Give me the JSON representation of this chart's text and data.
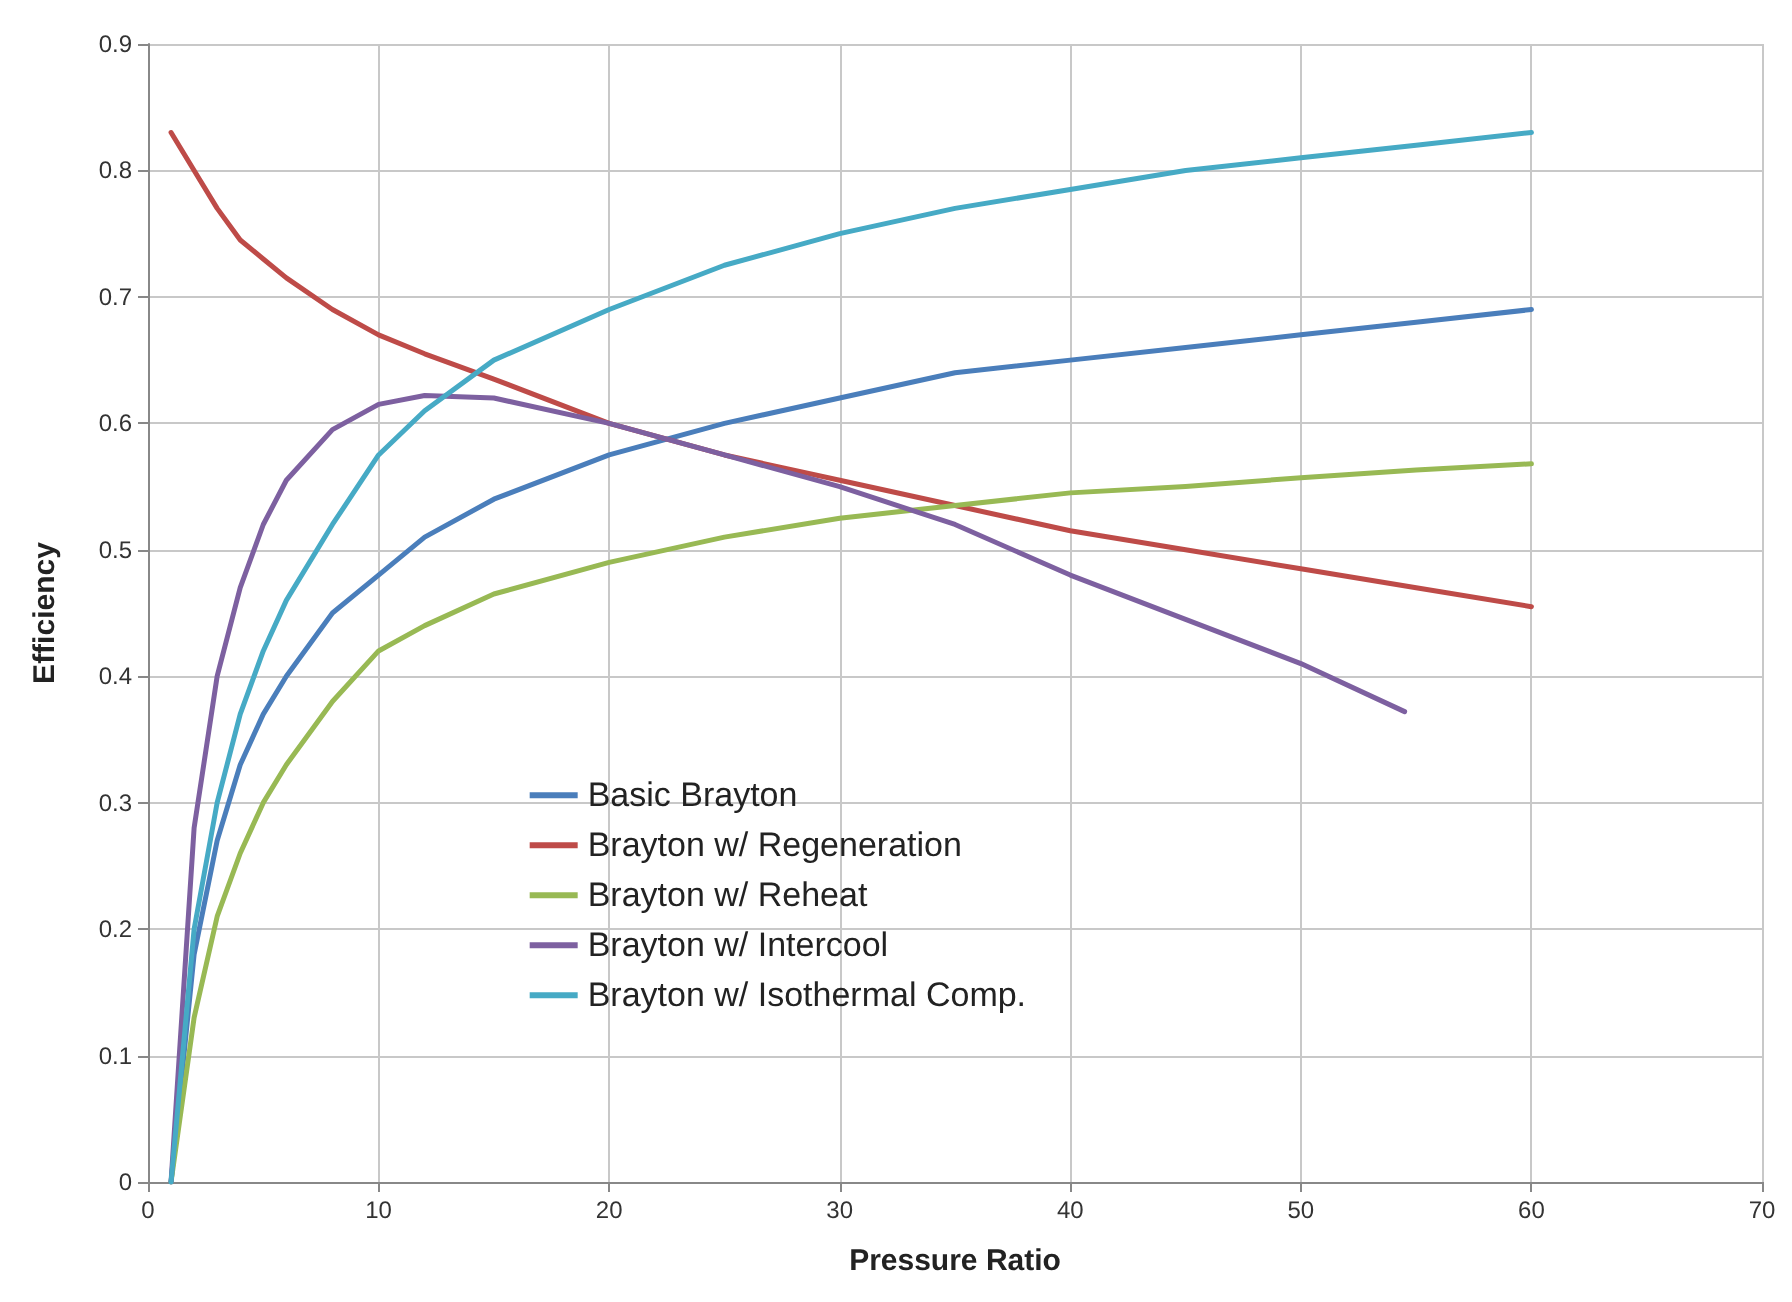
{
  "chart_data": {
    "type": "line",
    "xlabel": "Pressure Ratio",
    "ylabel": "Efficiency",
    "xlim": [
      0,
      70
    ],
    "xticks": [
      0,
      10,
      20,
      30,
      40,
      50,
      60,
      70
    ],
    "ylim": [
      0,
      0.9
    ],
    "yticks": [
      0,
      0.1,
      0.2,
      0.3,
      0.4,
      0.5,
      0.6,
      0.7,
      0.8,
      0.9
    ],
    "grid": true,
    "legend": "center",
    "marker": "none",
    "line_style": "solid",
    "x": [
      1,
      2,
      3,
      4,
      5,
      6,
      8,
      10,
      12,
      15,
      20,
      25,
      30,
      35,
      40,
      45,
      50,
      55,
      60
    ],
    "series": [
      {
        "name": "Basic Brayton",
        "color": "#4a7ebb",
        "values": [
          0,
          0.18,
          0.27,
          0.33,
          0.37,
          0.4,
          0.45,
          0.48,
          0.51,
          0.54,
          0.575,
          0.6,
          0.62,
          0.64,
          0.65,
          0.66,
          0.67,
          0.68,
          0.69
        ]
      },
      {
        "name": "Brayton w/ Regeneration",
        "color": "#be4b48",
        "values": [
          0.83,
          0.8,
          0.77,
          0.745,
          0.73,
          0.715,
          0.69,
          0.67,
          0.655,
          0.635,
          0.6,
          0.575,
          0.555,
          0.535,
          0.515,
          0.5,
          0.485,
          0.47,
          0.455
        ]
      },
      {
        "name": "Brayton w/ Reheat",
        "color": "#98b954",
        "values": [
          0,
          0.13,
          0.21,
          0.26,
          0.3,
          0.33,
          0.38,
          0.42,
          0.44,
          0.465,
          0.49,
          0.51,
          0.525,
          0.535,
          0.545,
          0.55,
          0.557,
          0.563,
          0.568
        ]
      },
      {
        "name": "Brayton w/ Intercool",
        "color": "#7d60a0",
        "x": [
          1,
          2,
          3,
          4,
          5,
          6,
          8,
          10,
          12,
          15,
          20,
          25,
          30,
          35,
          40,
          45,
          50,
          54.5
        ],
        "values": [
          0,
          0.28,
          0.4,
          0.47,
          0.52,
          0.555,
          0.595,
          0.615,
          0.622,
          0.62,
          0.6,
          0.575,
          0.55,
          0.52,
          0.48,
          0.445,
          0.41,
          0.372
        ]
      },
      {
        "name": "Brayton w/ Isothermal Comp.",
        "color": "#46aac5",
        "values": [
          0,
          0.2,
          0.3,
          0.37,
          0.42,
          0.46,
          0.52,
          0.575,
          0.61,
          0.65,
          0.69,
          0.725,
          0.75,
          0.77,
          0.785,
          0.8,
          0.81,
          0.82,
          0.83
        ]
      }
    ]
  }
}
